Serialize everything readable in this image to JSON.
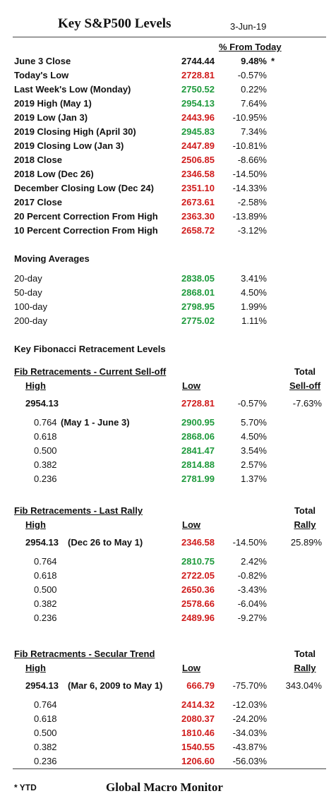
{
  "header": {
    "title": "Key S&P500 Levels",
    "date": "3-Jun-19",
    "pct_header": "% From Today"
  },
  "key_levels": [
    {
      "label": "June 3 Close",
      "value": "2744.44",
      "pct": "9.48%",
      "note": "*",
      "color": "black"
    },
    {
      "label": "Today's Low",
      "value": "2728.81",
      "pct": "-0.57%",
      "note": "",
      "color": "red"
    },
    {
      "label": "Last Week's Low (Monday)",
      "value": "2750.52",
      "pct": "0.22%",
      "note": "",
      "color": "green"
    },
    {
      "label": "2019 High  (May 1)",
      "value": "2954.13",
      "pct": "7.64%",
      "note": "",
      "color": "green"
    },
    {
      "label": "2019 Low  (Jan 3)",
      "value": "2443.96",
      "pct": "-10.95%",
      "note": "",
      "color": "red"
    },
    {
      "label": "2019 Closing High (April 30)",
      "value": "2945.83",
      "pct": "7.34%",
      "note": "",
      "color": "green"
    },
    {
      "label": "2019 Closing Low (Jan 3)",
      "value": "2447.89",
      "pct": "-10.81%",
      "note": "",
      "color": "red"
    },
    {
      "label": "2018 Close",
      "value": "2506.85",
      "pct": "-8.66%",
      "note": "",
      "color": "red"
    },
    {
      "label": "2018 Low (Dec 26)",
      "value": "2346.58",
      "pct": "-14.50%",
      "note": "",
      "color": "red"
    },
    {
      "label": "December Closing Low (Dec 24)",
      "value": "2351.10",
      "pct": "-14.33%",
      "note": "",
      "color": "red"
    },
    {
      "label": "2017 Close",
      "value": "2673.61",
      "pct": "-2.58%",
      "note": "",
      "color": "red"
    },
    {
      "label": "20 Percent Correction From High",
      "value": "2363.30",
      "pct": "-13.89%",
      "note": "",
      "color": "red"
    },
    {
      "label": "10 Percent Correction From High",
      "value": "2658.72",
      "pct": "-3.12%",
      "note": "",
      "color": "red"
    }
  ],
  "moving_averages": {
    "title": "Moving Averages",
    "rows": [
      {
        "label": "20-day",
        "value": "2838.05",
        "pct": "3.41%",
        "color": "green"
      },
      {
        "label": "50-day",
        "value": "2868.01",
        "pct": "4.50%",
        "color": "green"
      },
      {
        "label": "100-day",
        "value": "2798.95",
        "pct": "1.99%",
        "color": "green"
      },
      {
        "label": "200-day",
        "value": "2775.02",
        "pct": "1.11%",
        "color": "green"
      }
    ]
  },
  "fib_title": "Key Fibonacci Retracement Levels",
  "fib_sections": [
    {
      "title": "Fib Retracements - Current Sell-off",
      "total_label_1": "Total",
      "total_label_2": "Sell-off",
      "high_label": "High",
      "low_label": "Low",
      "base": {
        "high": "2954.13",
        "desc": "",
        "low": "2728.81",
        "pct": "-0.57%",
        "total": "-7.63%",
        "color": "red"
      },
      "rows": [
        {
          "level": "0.764",
          "desc": "(May 1 - June 3)",
          "value": "2900.95",
          "pct": "5.70%",
          "color": "green"
        },
        {
          "level": "0.618",
          "desc": "",
          "value": "2868.06",
          "pct": "4.50%",
          "color": "green"
        },
        {
          "level": "0.500",
          "desc": "",
          "value": "2841.47",
          "pct": "3.54%",
          "color": "green"
        },
        {
          "level": "0.382",
          "desc": "",
          "value": "2814.88",
          "pct": "2.57%",
          "color": "green"
        },
        {
          "level": "0.236",
          "desc": "",
          "value": "2781.99",
          "pct": "1.37%",
          "color": "green"
        }
      ]
    },
    {
      "title": "Fib Retracements - Last Rally",
      "total_label_1": "Total",
      "total_label_2": "Rally",
      "high_label": "High",
      "low_label": "Low",
      "base": {
        "high": "2954.13",
        "desc": "(Dec 26 to May 1)",
        "low": "2346.58",
        "pct": "-14.50%",
        "total": "25.89%",
        "color": "red"
      },
      "rows": [
        {
          "level": "0.764",
          "desc": "",
          "value": "2810.75",
          "pct": "2.42%",
          "color": "green"
        },
        {
          "level": "0.618",
          "desc": "",
          "value": "2722.05",
          "pct": "-0.82%",
          "color": "red"
        },
        {
          "level": "0.500",
          "desc": "",
          "value": "2650.36",
          "pct": "-3.43%",
          "color": "red"
        },
        {
          "level": "0.382",
          "desc": "",
          "value": "2578.66",
          "pct": "-6.04%",
          "color": "red"
        },
        {
          "level": "0.236",
          "desc": "",
          "value": "2489.96",
          "pct": "-9.27%",
          "color": "red"
        }
      ]
    },
    {
      "title": "Fib Retracments - Secular Trend",
      "total_label_1": "Total",
      "total_label_2": "Rally",
      "high_label": "High",
      "low_label": "Low",
      "base": {
        "high": "2954.13",
        "desc": "(Mar 6, 2009  to May 1)",
        "low": "666.79",
        "pct": "-75.70%",
        "total": "343.04%",
        "color": "red"
      },
      "rows": [
        {
          "level": "0.764",
          "desc": "",
          "value": "2414.32",
          "pct": "-12.03%",
          "color": "red"
        },
        {
          "level": "0.618",
          "desc": "",
          "value": "2080.37",
          "pct": "-24.20%",
          "color": "red"
        },
        {
          "level": "0.500",
          "desc": "",
          "value": "1810.46",
          "pct": "-34.03%",
          "color": "red"
        },
        {
          "level": "0.382",
          "desc": "",
          "value": "1540.55",
          "pct": "-43.87%",
          "color": "red"
        },
        {
          "level": "0.236",
          "desc": "",
          "value": "1206.60",
          "pct": "-56.03%",
          "color": "red"
        }
      ]
    }
  ],
  "footer": {
    "note": "* YTD",
    "brand": "Global Macro Monitor"
  },
  "colors": {
    "green": "#1e9a3c",
    "red": "#d01b1b",
    "black": "#111111"
  }
}
